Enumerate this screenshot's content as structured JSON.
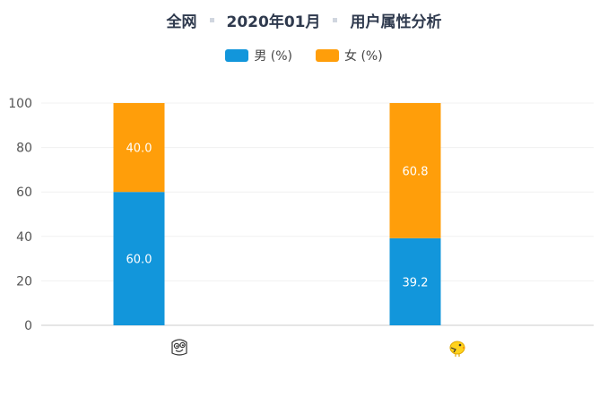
{
  "title": {
    "scope": "全网",
    "period": "2020年01月",
    "subject": "用户属性分析"
  },
  "chart_data": {
    "type": "bar",
    "stacked": true,
    "categories": [
      "app-1",
      "app-2"
    ],
    "category_icons": [
      {
        "name": "pink-face-app-icon",
        "bg": "#f06c85"
      },
      {
        "name": "yellow-bird-app-icon",
        "bg": "#3b7ff0"
      }
    ],
    "series": [
      {
        "name": "男 (%)",
        "values": [
          60.0,
          39.2
        ],
        "color": "#1296db"
      },
      {
        "name": "女 (%)",
        "values": [
          40.0,
          60.8
        ],
        "color": "#ff9e0a"
      }
    ],
    "ylim": [
      0,
      100
    ],
    "yticks": [
      0,
      20,
      40,
      60,
      80,
      100
    ],
    "grid": true,
    "legend": "top-center",
    "data_labels": true
  }
}
